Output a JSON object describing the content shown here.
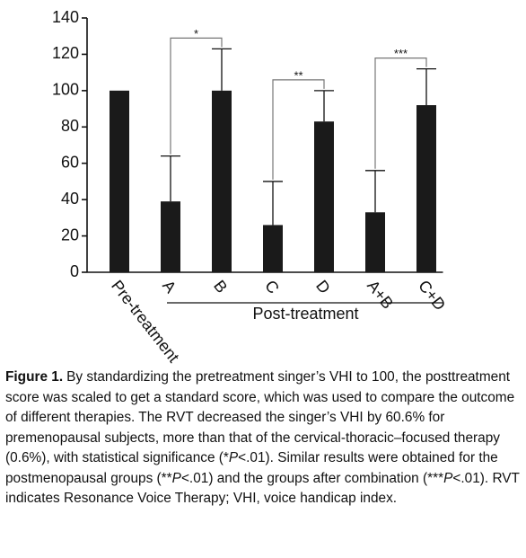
{
  "chart_data": {
    "type": "bar",
    "categories": [
      "Pre-treatment",
      "A",
      "B",
      "C",
      "D",
      "A+B",
      "C+D"
    ],
    "values": [
      100,
      39,
      100,
      26,
      83,
      33,
      92
    ],
    "errors": [
      null,
      25,
      23,
      24,
      17,
      23,
      20
    ],
    "color": "#1a1a1a",
    "ylim": [
      0,
      140
    ],
    "yticks": [
      0,
      20,
      40,
      60,
      80,
      100,
      120,
      140
    ],
    "significance": [
      {
        "pair": [
          "A",
          "B"
        ],
        "label": "*"
      },
      {
        "pair": [
          "C",
          "D"
        ],
        "label": "**"
      },
      {
        "pair": [
          "A+B",
          "C+D"
        ],
        "label": "***"
      }
    ],
    "groups": [
      {
        "label": "Post-treatment",
        "from": "A",
        "to": "C+D"
      }
    ]
  },
  "caption": {
    "label": "Figure 1.",
    "runs": [
      {
        "text": "By standardizing the pretreatment singer’s VHI to 100, the posttreatment score was scaled to get a standard score, which was used to compare the outcome of different therapies. The RVT decreased the singer’s VHI by 60.6% for premenopausal subjects, more than that of the cervical-thoracic–focused therapy (0.6%), with statistical significance (*"
      },
      {
        "text": "P",
        "italic": true
      },
      {
        "text": "<.01). Similar results were obtained for the postmenopausal groups (**"
      },
      {
        "text": "P",
        "italic": true
      },
      {
        "text": "<.01) and the groups after combination (***"
      },
      {
        "text": "P",
        "italic": true
      },
      {
        "text": "<.01). RVT indicates Resonance Voice Therapy; VHI, voice handicap index."
      }
    ]
  }
}
